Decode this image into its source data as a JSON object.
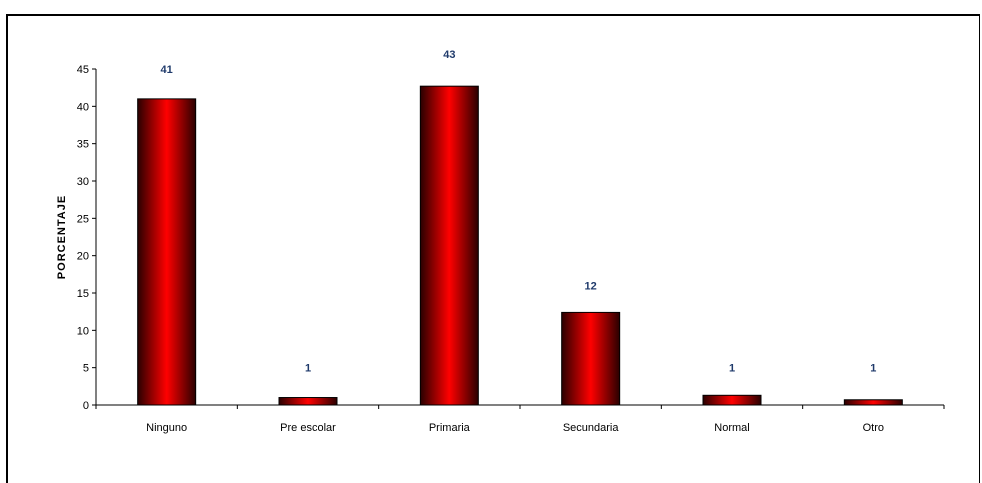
{
  "chart_data": {
    "type": "bar",
    "title": "",
    "xlabel": "",
    "ylabel": "PORCENTAJE",
    "categories": [
      "Ninguno",
      "Pre escolar",
      "Primaria",
      "Secundaria",
      "Normal",
      "Otro"
    ],
    "values": [
      41,
      1,
      43,
      12,
      1,
      1
    ],
    "bar_heights": [
      41,
      1,
      42.7,
      12.4,
      1.3,
      0.7
    ],
    "data_labels": [
      "41",
      "1",
      "43",
      "12",
      "1",
      "1"
    ],
    "ylim": [
      0,
      45
    ],
    "yticks": [
      0,
      5,
      10,
      15,
      20,
      25,
      30,
      35,
      40,
      45
    ],
    "grid": false,
    "legend": "none",
    "colors": {
      "bar_center": "#ff0000",
      "bar_edge": "#2a0000",
      "data_label": "#1f3a6b"
    }
  }
}
